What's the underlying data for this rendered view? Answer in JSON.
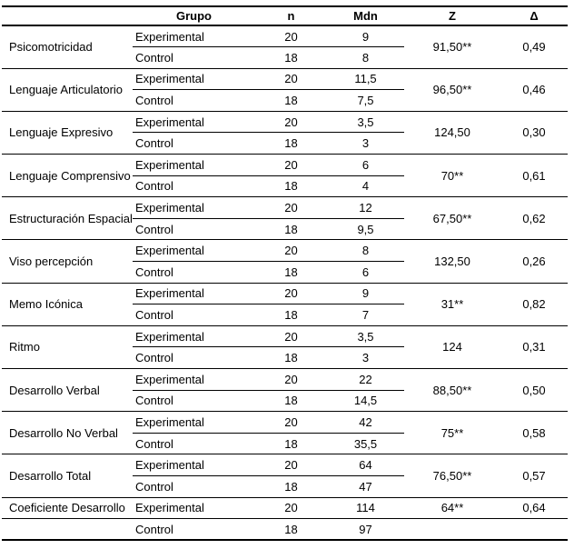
{
  "table": {
    "headers": {
      "label": "",
      "grupo": "Grupo",
      "n": "n",
      "mdn": "Mdn",
      "z": "Z",
      "delta": "Δ"
    },
    "blocks": [
      {
        "label": "Psicomotricidad",
        "rows": [
          {
            "grupo": "Experimental",
            "n": "20",
            "mdn": "9"
          },
          {
            "grupo": "Control",
            "n": "18",
            "mdn": "8"
          }
        ],
        "z": "91,50**",
        "delta": "0,49"
      },
      {
        "label": "Lenguaje Articulatorio",
        "rows": [
          {
            "grupo": "Experimental",
            "n": "20",
            "mdn": "11,5"
          },
          {
            "grupo": "Control",
            "n": "18",
            "mdn": "7,5"
          }
        ],
        "z": "96,50**",
        "delta": "0,46"
      },
      {
        "label": "Lenguaje Expresivo",
        "rows": [
          {
            "grupo": "Experimental",
            "n": "20",
            "mdn": "3,5"
          },
          {
            "grupo": "Control",
            "n": "18",
            "mdn": "3"
          }
        ],
        "z": "124,50",
        "delta": "0,30"
      },
      {
        "label": "Lenguaje Comprensivo",
        "rows": [
          {
            "grupo": "Experimental",
            "n": "20",
            "mdn": "6"
          },
          {
            "grupo": "Control",
            "n": "18",
            "mdn": "4"
          }
        ],
        "z": "70**",
        "delta": "0,61"
      },
      {
        "label": "Estructuración Espacial",
        "rows": [
          {
            "grupo": "Experimental",
            "n": "20",
            "mdn": "12"
          },
          {
            "grupo": "Control",
            "n": "18",
            "mdn": "9,5"
          }
        ],
        "z": "67,50**",
        "delta": "0,62"
      },
      {
        "label": "Viso percepción",
        "rows": [
          {
            "grupo": "Experimental",
            "n": "20",
            "mdn": "8"
          },
          {
            "grupo": "Control",
            "n": "18",
            "mdn": "6"
          }
        ],
        "z": "132,50",
        "delta": "0,26"
      },
      {
        "label": "Memo Icónica",
        "rows": [
          {
            "grupo": "Experimental",
            "n": "20",
            "mdn": "9"
          },
          {
            "grupo": "Control",
            "n": "18",
            "mdn": "7"
          }
        ],
        "z": "31**",
        "delta": "0,82"
      },
      {
        "label": "Ritmo",
        "rows": [
          {
            "grupo": "Experimental",
            "n": "20",
            "mdn": "3,5"
          },
          {
            "grupo": "Control",
            "n": "18",
            "mdn": "3"
          }
        ],
        "z": "124",
        "delta": "0,31"
      },
      {
        "label": "Desarrollo Verbal",
        "rows": [
          {
            "grupo": "Experimental",
            "n": "20",
            "mdn": "22"
          },
          {
            "grupo": "Control",
            "n": "18",
            "mdn": "14,5"
          }
        ],
        "z": "88,50**",
        "delta": "0,50"
      },
      {
        "label": "Desarrollo No Verbal",
        "rows": [
          {
            "grupo": "Experimental",
            "n": "20",
            "mdn": "42"
          },
          {
            "grupo": "Control",
            "n": "18",
            "mdn": "35,5"
          }
        ],
        "z": "75**",
        "delta": "0,58"
      },
      {
        "label": "Desarrollo Total",
        "rows": [
          {
            "grupo": "Experimental",
            "n": "20",
            "mdn": "64"
          },
          {
            "grupo": "Control",
            "n": "18",
            "mdn": "47"
          }
        ],
        "z": "76,50**",
        "delta": "0,57"
      },
      {
        "label": "Coeficiente Desarrollo",
        "rows": [
          {
            "grupo": "Experimental",
            "n": "20",
            "mdn": "114"
          },
          {
            "grupo": "Control",
            "n": "18",
            "mdn": "97"
          }
        ],
        "z": "64**",
        "delta": "0,64"
      }
    ],
    "colors": {
      "border": "#000000",
      "text": "#000000",
      "background": "#ffffff"
    }
  }
}
